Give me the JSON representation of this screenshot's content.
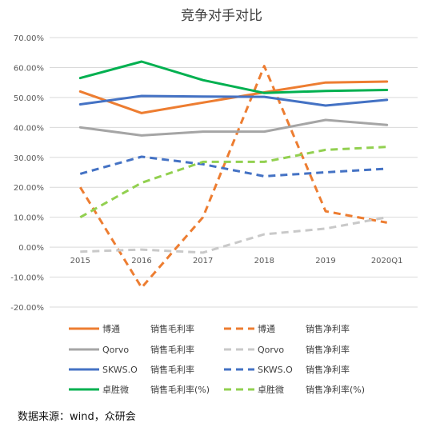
{
  "chart_data": {
    "type": "line",
    "title": "竞争对手对比",
    "categories": [
      "2015",
      "2016",
      "2017",
      "2018",
      "2019",
      "2020Q1"
    ],
    "ylim": [
      -20,
      70
    ],
    "yticks": [
      "70.00%",
      "60.00%",
      "50.00%",
      "40.00%",
      "30.00%",
      "20.00%",
      "10.00%",
      "0.00%",
      "-10.00%",
      "-20.00%"
    ],
    "grid": true,
    "legend_position": "bottom",
    "series": [
      {
        "name": "博通 销售毛利率",
        "company": "博通",
        "metric": "销售毛利率",
        "color": "#ED7D31",
        "dash": false,
        "values": [
          52.0,
          44.8,
          48.3,
          51.7,
          55.0,
          55.3
        ]
      },
      {
        "name": "博通 销售净利率",
        "company": "博通",
        "metric": "销售净利率",
        "color": "#ED7D31",
        "dash": true,
        "values": [
          20.0,
          -13.5,
          10.0,
          60.5,
          12.0,
          8.2
        ]
      },
      {
        "name": "Qorvo 销售毛利率",
        "company": "Qorvo",
        "metric": "销售毛利率",
        "color": "#A5A5A5",
        "dash": false,
        "values": [
          40.0,
          37.3,
          38.6,
          38.6,
          42.5,
          40.8
        ]
      },
      {
        "name": "Qorvo 销售净利率",
        "company": "Qorvo",
        "metric": "销售净利率",
        "color": "#C9C9C9",
        "dash": true,
        "values": [
          -1.5,
          -0.8,
          -1.8,
          4.3,
          6.2,
          10.0
        ]
      },
      {
        "name": "SKWS.O 销售毛利率",
        "company": "SKWS.O",
        "metric": "销售毛利率",
        "color": "#4472C4",
        "dash": false,
        "values": [
          47.7,
          50.5,
          50.3,
          50.2,
          47.3,
          49.2
        ]
      },
      {
        "name": "SKWS.O 销售净利率",
        "company": "SKWS.O",
        "metric": "销售净利率",
        "color": "#4472C4",
        "dash": true,
        "values": [
          24.5,
          30.2,
          27.7,
          23.7,
          25.0,
          26.2
        ]
      },
      {
        "name": "卓胜微 销售毛利率(%)",
        "company": "卓胜微",
        "metric": "销售毛利率(%)",
        "color": "#00B050",
        "dash": false,
        "values": [
          56.5,
          62.0,
          55.8,
          51.5,
          52.2,
          52.5
        ]
      },
      {
        "name": "卓胜微 销售净利率(%)",
        "company": "卓胜微",
        "metric": "销售净利率(%)",
        "color": "#92D050",
        "dash": true,
        "values": [
          10.0,
          21.5,
          28.5,
          28.5,
          32.5,
          33.5
        ]
      }
    ]
  },
  "source_text": "数据来源：wind，众研会"
}
